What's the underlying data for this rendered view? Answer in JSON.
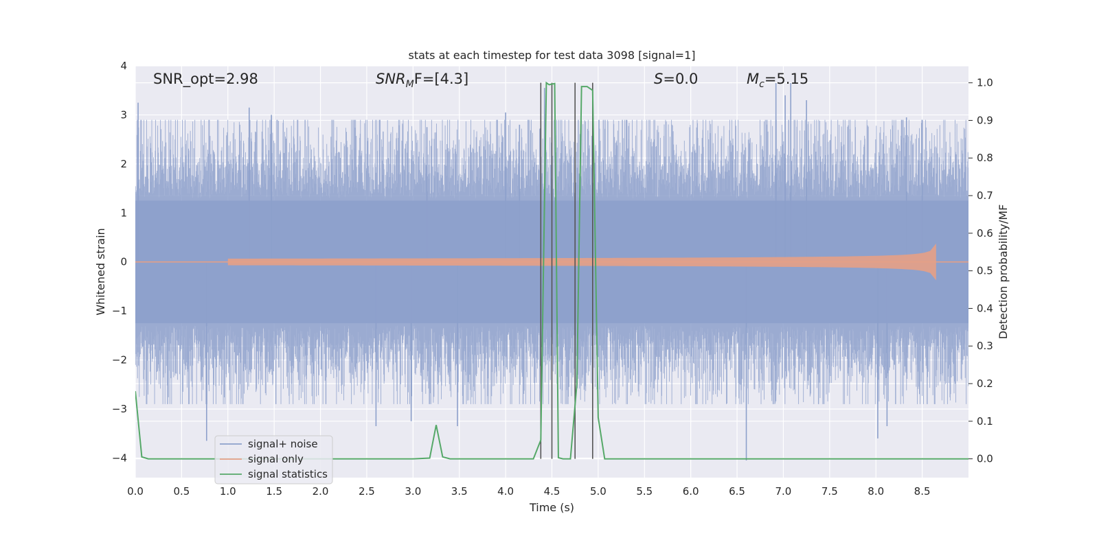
{
  "chart_data": {
    "type": "line",
    "title": "stats at each timestep for test data 3098 [signal=1]",
    "xlabel": "Time (s)",
    "ylabel": "Whitened strain",
    "y2label": "Detection probability/MF",
    "xlim": [
      0,
      9.0
    ],
    "ylim": [
      -4.4,
      4.0
    ],
    "y2lim": [
      -0.05,
      1.045
    ],
    "xticks": [
      "0.0",
      "0.5",
      "1.0",
      "1.5",
      "2.0",
      "2.5",
      "3.0",
      "3.5",
      "4.0",
      "4.5",
      "5.0",
      "5.5",
      "6.0",
      "6.5",
      "7.0",
      "7.5",
      "8.0",
      "8.5"
    ],
    "yticks": [
      "4",
      "3",
      "2",
      "1",
      "0",
      "−1",
      "−2",
      "−3",
      "−4"
    ],
    "y2ticks": [
      "1.0",
      "0.9",
      "0.8",
      "0.7",
      "0.6",
      "0.5",
      "0.4",
      "0.3",
      "0.2",
      "0.1",
      "0.0"
    ],
    "grid": true,
    "legend_position": "lower-left",
    "annotations": {
      "snr_opt": "SNR_opt=2.98",
      "snr_mf_main": "SNR",
      "snr_mf_sub": "M",
      "snr_mf_tail": "F=[4.3]",
      "s_main": "S",
      "s_tail": "=0.0",
      "mc_main": "M",
      "mc_sub": "c",
      "mc_tail": "=5.15"
    },
    "series": [
      {
        "name": "signal+ noise",
        "color": "#8da0cb",
        "kind": "noise",
        "duration": 9.0,
        "sigma": 1.0,
        "spike_times": [
          0.03,
          0.77,
          1.23,
          1.47,
          2.6,
          2.98,
          3.15,
          3.48,
          4.0,
          4.15,
          4.42,
          6.6,
          6.92,
          7.02,
          7.08,
          7.25,
          8.02,
          8.12,
          8.33,
          8.5
        ],
        "spike_values": [
          3.25,
          -3.65,
          3.15,
          3.0,
          -3.35,
          -3.25,
          2.75,
          -3.35,
          3.05,
          2.8,
          3.55,
          -4.05,
          3.65,
          3.4,
          3.65,
          3.3,
          -3.6,
          -3.35,
          2.95,
          2.9
        ]
      },
      {
        "name": "signal only",
        "color": "#e5a086",
        "kind": "chirp",
        "start_time": 1.0,
        "merger_time": 8.65,
        "peak_amplitude": 0.3
      },
      {
        "name": "signal statistics",
        "color": "#55a868",
        "x": [
          0.0,
          0.07,
          0.14,
          0.5,
          1.0,
          1.5,
          2.0,
          2.5,
          3.0,
          3.18,
          3.25,
          3.32,
          3.4,
          3.6,
          4.0,
          4.3,
          4.38,
          4.44,
          4.47,
          4.53,
          4.57,
          4.62,
          4.7,
          4.77,
          4.82,
          4.88,
          4.94,
          5.0,
          5.07,
          5.5,
          6.0,
          7.0,
          8.0,
          9.0
        ],
        "y": [
          0.18,
          0.005,
          0.0,
          0.0,
          0.0,
          0.0,
          0.0,
          0.0,
          0.0,
          0.002,
          0.09,
          0.005,
          0.0,
          0.0,
          0.0,
          0.0,
          0.05,
          1.0,
          0.995,
          0.998,
          0.003,
          0.0,
          0.0,
          0.2,
          0.99,
          0.99,
          0.98,
          0.11,
          0.0,
          0.0,
          0.0,
          0.0,
          0.0,
          0.0
        ]
      }
    ],
    "vertical_lines": [
      4.38,
      4.5,
      4.75,
      4.94
    ],
    "vline_color": "#555555"
  }
}
